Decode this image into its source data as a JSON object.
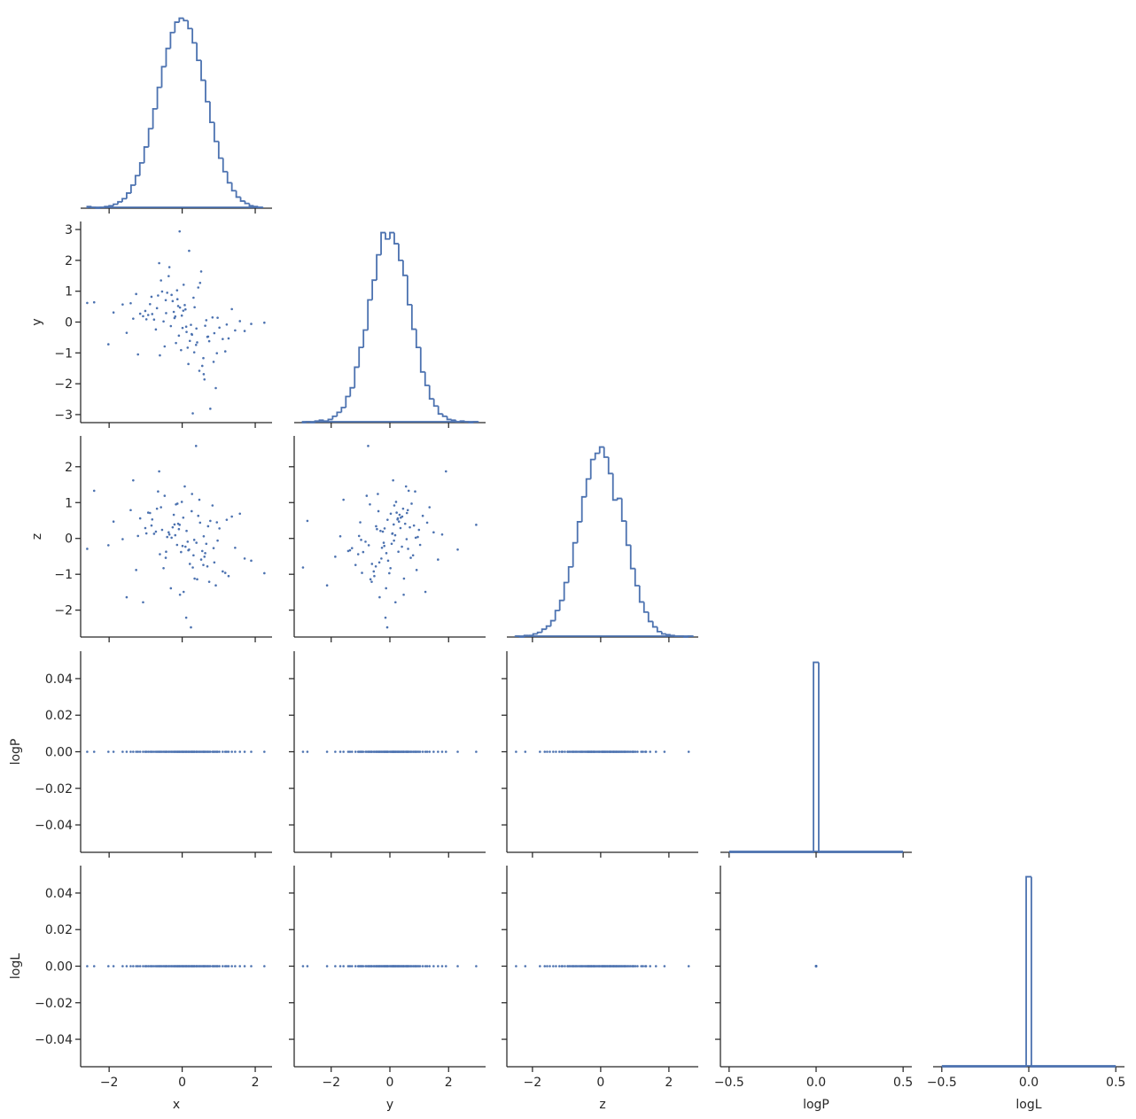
{
  "chart_data": {
    "type": "corner",
    "color": "#4c72b0",
    "variables": [
      {
        "name": "x",
        "lim": [
          -2.78,
          2.46
        ],
        "ticks": [
          {
            "value": -2,
            "label": "−2"
          },
          0,
          2
        ]
      },
      {
        "name": "y",
        "lim": [
          -3.26,
          3.26
        ],
        "ticks": [
          {
            "value": -3,
            "label": "−3"
          },
          {
            "value": -2,
            "label": "−2"
          },
          {
            "value": -1,
            "label": "−1"
          },
          0,
          1,
          2,
          3
        ],
        "xticks": [
          {
            "value": -2,
            "label": "−2"
          },
          0,
          2
        ]
      },
      {
        "name": "z",
        "lim": [
          -2.75,
          2.86
        ],
        "ticks": [
          {
            "value": -2,
            "label": "−2"
          },
          {
            "value": -1,
            "label": "−1"
          },
          0,
          1,
          2
        ],
        "xticks": [
          {
            "value": -2,
            "label": "−2"
          },
          0,
          2
        ]
      },
      {
        "name": "logP",
        "lim": [
          -0.055,
          0.055
        ],
        "ticks": [
          {
            "value": -0.04,
            "label": "−0.04"
          },
          {
            "value": -0.02,
            "label": "−0.02"
          },
          {
            "value": 0,
            "label": "0.00"
          },
          0.02,
          0.04
        ],
        "xlim": [
          -0.55,
          0.55
        ],
        "xticks": [
          {
            "value": -0.5,
            "label": "−0.5"
          },
          {
            "value": 0,
            "label": "0.0"
          },
          0.5
        ]
      },
      {
        "name": "logL",
        "lim": [
          -0.055,
          0.055
        ],
        "ticks": [
          {
            "value": -0.04,
            "label": "−0.04"
          },
          {
            "value": -0.02,
            "label": "−0.02"
          },
          {
            "value": 0,
            "label": "0.00"
          },
          0.02,
          0.04
        ],
        "xlim": [
          -0.55,
          0.55
        ],
        "xticks": [
          {
            "value": -0.5,
            "label": "−0.5"
          },
          {
            "value": 0,
            "label": "0.0"
          },
          0.5
        ]
      }
    ],
    "histograms": [
      {
        "bins": [
          -2.6,
          -2.48,
          -2.36,
          -2.24,
          -2.12,
          -2.0,
          -1.88,
          -1.76,
          -1.64,
          -1.52,
          -1.4,
          -1.28,
          -1.16,
          -1.04,
          -0.92,
          -0.8,
          -0.68,
          -0.56,
          -0.44,
          -0.32,
          -0.2,
          -0.08,
          0.04,
          0.16,
          0.28,
          0.4,
          0.52,
          0.64,
          0.76,
          0.88,
          1.0,
          1.12,
          1.24,
          1.36,
          1.48,
          1.6,
          1.72,
          1.84,
          1.96,
          2.08,
          2.2
        ],
        "counts": [
          2,
          1,
          0,
          1,
          2,
          3,
          5,
          8,
          12,
          19,
          29,
          41,
          57,
          77,
          100,
          125,
          152,
          178,
          201,
          221,
          234,
          239,
          236,
          226,
          208,
          186,
          161,
          134,
          108,
          84,
          63,
          46,
          32,
          22,
          14,
          9,
          6,
          3,
          2,
          1
        ]
      },
      {
        "bins": [
          -3.0,
          -2.85,
          -2.7,
          -2.55,
          -2.4,
          -2.25,
          -2.1,
          -1.95,
          -1.8,
          -1.65,
          -1.5,
          -1.35,
          -1.2,
          -1.05,
          -0.9,
          -0.75,
          -0.6,
          -0.45,
          -0.3,
          -0.15,
          0,
          0.15,
          0.3,
          0.45,
          0.6,
          0.75,
          0.9,
          1.05,
          1.2,
          1.35,
          1.5,
          1.65,
          1.8,
          1.95,
          2.1,
          2.25,
          2.4,
          2.55,
          2.7,
          2.85,
          3.0
        ],
        "counts": [
          0,
          1,
          0,
          2,
          3,
          2,
          4,
          8,
          13,
          19,
          33,
          44,
          70,
          95,
          117,
          155,
          180,
          212,
          240,
          232,
          240,
          226,
          205,
          186,
          149,
          118,
          95,
          64,
          47,
          30,
          21,
          11,
          8,
          4,
          3,
          1,
          2,
          1,
          0,
          1
        ]
      },
      {
        "bins": [
          -2.5,
          -2.37,
          -2.24,
          -2.11,
          -1.98,
          -1.85,
          -1.72,
          -1.59,
          -1.46,
          -1.33,
          -1.2,
          -1.07,
          -0.94,
          -0.81,
          -0.68,
          -0.55,
          -0.42,
          -0.29,
          -0.16,
          -0.03,
          0.1,
          0.23,
          0.36,
          0.49,
          0.62,
          0.75,
          0.88,
          1.01,
          1.14,
          1.27,
          1.4,
          1.53,
          1.66,
          1.79,
          1.92,
          2.05,
          2.18,
          2.31,
          2.44,
          2.57,
          2.7
        ],
        "counts": [
          1,
          0,
          2,
          2,
          4,
          6,
          10,
          14,
          21,
          34,
          47,
          70,
          90,
          121,
          148,
          180,
          203,
          228,
          236,
          244,
          231,
          210,
          176,
          178,
          149,
          118,
          88,
          66,
          45,
          32,
          20,
          13,
          7,
          4,
          3,
          2,
          1,
          1,
          0,
          1
        ]
      },
      {
        "bins": [
          -0.5,
          -0.015,
          0.015,
          0.5
        ],
        "counts": [
          0,
          5000,
          0
        ]
      },
      {
        "bins": [
          -0.5,
          -0.015,
          0.015,
          0.5
        ],
        "counts": [
          0,
          5000,
          0
        ]
      }
    ],
    "samples": [
      [
        0.12,
        -0.45,
        0.83,
        -1.21,
        0.34,
        -0.07,
        1.45,
        -0.66,
        0.21,
        -0.98,
        0.55,
        -0.23,
        0.04,
        1.02,
        -1.63,
        0.38,
        -0.51,
        0.77,
        -0.14,
        0.26,
        -2.41,
        0.63,
        -0.35,
        1.18,
        -0.82,
        0.09,
        0.47,
        -1.07,
        0.71,
        -0.29,
        1.89,
        -0.58,
        0.15,
        -0.11,
        0.92,
        -1.34,
        0.31,
        -0.72,
        0.58,
        0.03,
        -0.41,
        1.27,
        -0.93,
        0.19,
        -0.17,
        0.66,
        -1.52,
        0.44,
        -0.03,
        2.25,
        -0.69,
        0.86,
        -0.26,
        0.11,
        -1.88,
        0.52,
        -0.48,
        0.97,
        -0.09,
        0.29,
        -1.15,
        0.74,
        -0.37,
        1.58,
        -0.61,
        0.07,
        0.39,
        -0.84,
        1.11,
        -0.19,
        0.61,
        -1.41,
        0.24,
        -0.55,
        0.88,
        -0.01,
        -2.02,
        0.49,
        -0.31,
        1.36,
        -0.77,
        0.17,
        -0.13,
        0.69,
        -1.01,
        0.33,
        -0.63,
        1.71,
        -0.21,
        0.41,
        -0.88,
        0.01,
        0.95,
        -1.26,
        0.27,
        -0.44,
        0.59,
        -0.06,
        1.22,
        -2.6
      ],
      [
        -0.32,
        0.71,
        0.15,
        -1.05,
        0.48,
        2.94,
        -0.27,
        0.86,
        -0.61,
        0.09,
        -1.42,
        0.33,
        1.21,
        -0.18,
        0.57,
        -0.74,
        0.02,
        -2.81,
        1.03,
        -0.39,
        0.64,
        -0.12,
        1.78,
        -0.95,
        0.26,
        0.41,
        -1.58,
        0.19,
        -0.47,
        0.88,
        -0.06,
        1.35,
        -0.83,
        0.52,
        -2.14,
        0.11,
        0.79,
        -0.24,
        -1.17,
        0.37,
        0.95,
        -0.53,
        0.23,
        2.31,
        -0.68,
        0.06,
        -0.35,
        1.12,
        -0.91,
        -0.02,
        0.45,
        -1.29,
        0.68,
        -0.15,
        0.31,
        1.64,
        -0.79,
        0.14,
        -0.44,
        -2.96,
        0.27,
        -0.62,
        1.49,
        0.03,
        -1.08,
        0.55,
        -0.21,
        0.82,
        -0.55,
        0.18,
        -1.86,
        0.61,
        -0.09,
        0.99,
        -0.36,
        0.21,
        -0.72,
        1.27,
        -0.13,
        0.42,
        0.08,
        -1.36,
        0.74,
        -0.48,
        0.36,
        -0.98,
        1.91,
        -0.29,
        0.13,
        -0.66,
        0.58,
        -0.19,
        -1.01,
        0.91,
        -0.41,
        0.29,
        -1.69,
        0.47,
        -0.08,
        0.62
      ],
      [
        0.21,
        -0.54,
        0.92,
        0.07,
        -1.12,
        0.38,
        -0.26,
        1.31,
        -0.71,
        0.14,
        -0.35,
        0.66,
        -1.49,
        0.28,
        -0.02,
        2.58,
        -0.83,
        0.49,
        -0.18,
        0.76,
        1.33,
        -0.41,
        0.11,
        -0.96,
        0.53,
        -0.23,
        1.08,
        -1.78,
        0.34,
        0.02,
        -0.62,
        0.87,
        -0.09,
        0.41,
        -1.31,
        1.62,
        -0.47,
        0.19,
        -0.74,
        0.58,
        0.04,
        -1.05,
        0.72,
        -0.31,
        0.95,
        -0.15,
        -1.64,
        0.63,
        -0.38,
        -0.97,
        0.83,
        -0.27,
        0.31,
        -2.21,
        0.47,
        -0.59,
        1.19,
        -0.06,
        0.26,
        -0.81,
        0.56,
        -1.21,
        0.17,
        0.69,
        -0.44,
        1.45,
        -0.12,
        0.36,
        -0.92,
        0.09,
        -0.51,
        0.79,
        -2.48,
        0.24,
        -0.67,
        1.02,
        -0.19,
        0.44,
        -1.39,
        0.61,
        0.13,
        -0.33,
        0.97,
        -0.78,
        0.29,
        -0.04,
        1.87,
        -0.56,
        0.39,
        -1.14,
        0.71,
        -0.21,
        0.45,
        -0.88,
        1.24,
        -0.37,
        0.06,
        -1.57,
        0.52,
        -0.29
      ],
      [
        0,
        0,
        0,
        0,
        0,
        0,
        0,
        0,
        0,
        0,
        0,
        0,
        0,
        0,
        0,
        0,
        0,
        0,
        0,
        0,
        0,
        0,
        0,
        0,
        0,
        0,
        0,
        0,
        0,
        0,
        0,
        0,
        0,
        0,
        0,
        0,
        0,
        0,
        0,
        0,
        0,
        0,
        0,
        0,
        0,
        0,
        0,
        0,
        0,
        0,
        0,
        0,
        0,
        0,
        0,
        0,
        0,
        0,
        0,
        0,
        0,
        0,
        0,
        0,
        0,
        0,
        0,
        0,
        0,
        0,
        0,
        0,
        0,
        0,
        0,
        0,
        0,
        0,
        0,
        0,
        0,
        0,
        0,
        0,
        0,
        0,
        0,
        0,
        0,
        0,
        0,
        0,
        0,
        0,
        0,
        0,
        0,
        0,
        0,
        0
      ],
      [
        0,
        0,
        0,
        0,
        0,
        0,
        0,
        0,
        0,
        0,
        0,
        0,
        0,
        0,
        0,
        0,
        0,
        0,
        0,
        0,
        0,
        0,
        0,
        0,
        0,
        0,
        0,
        0,
        0,
        0,
        0,
        0,
        0,
        0,
        0,
        0,
        0,
        0,
        0,
        0,
        0,
        0,
        0,
        0,
        0,
        0,
        0,
        0,
        0,
        0,
        0,
        0,
        0,
        0,
        0,
        0,
        0,
        0,
        0,
        0,
        0,
        0,
        0,
        0,
        0,
        0,
        0,
        0,
        0,
        0,
        0,
        0,
        0,
        0,
        0,
        0,
        0,
        0,
        0,
        0,
        0,
        0,
        0,
        0,
        0,
        0,
        0,
        0,
        0,
        0,
        0,
        0,
        0,
        0,
        0,
        0,
        0,
        0,
        0,
        0
      ]
    ]
  }
}
